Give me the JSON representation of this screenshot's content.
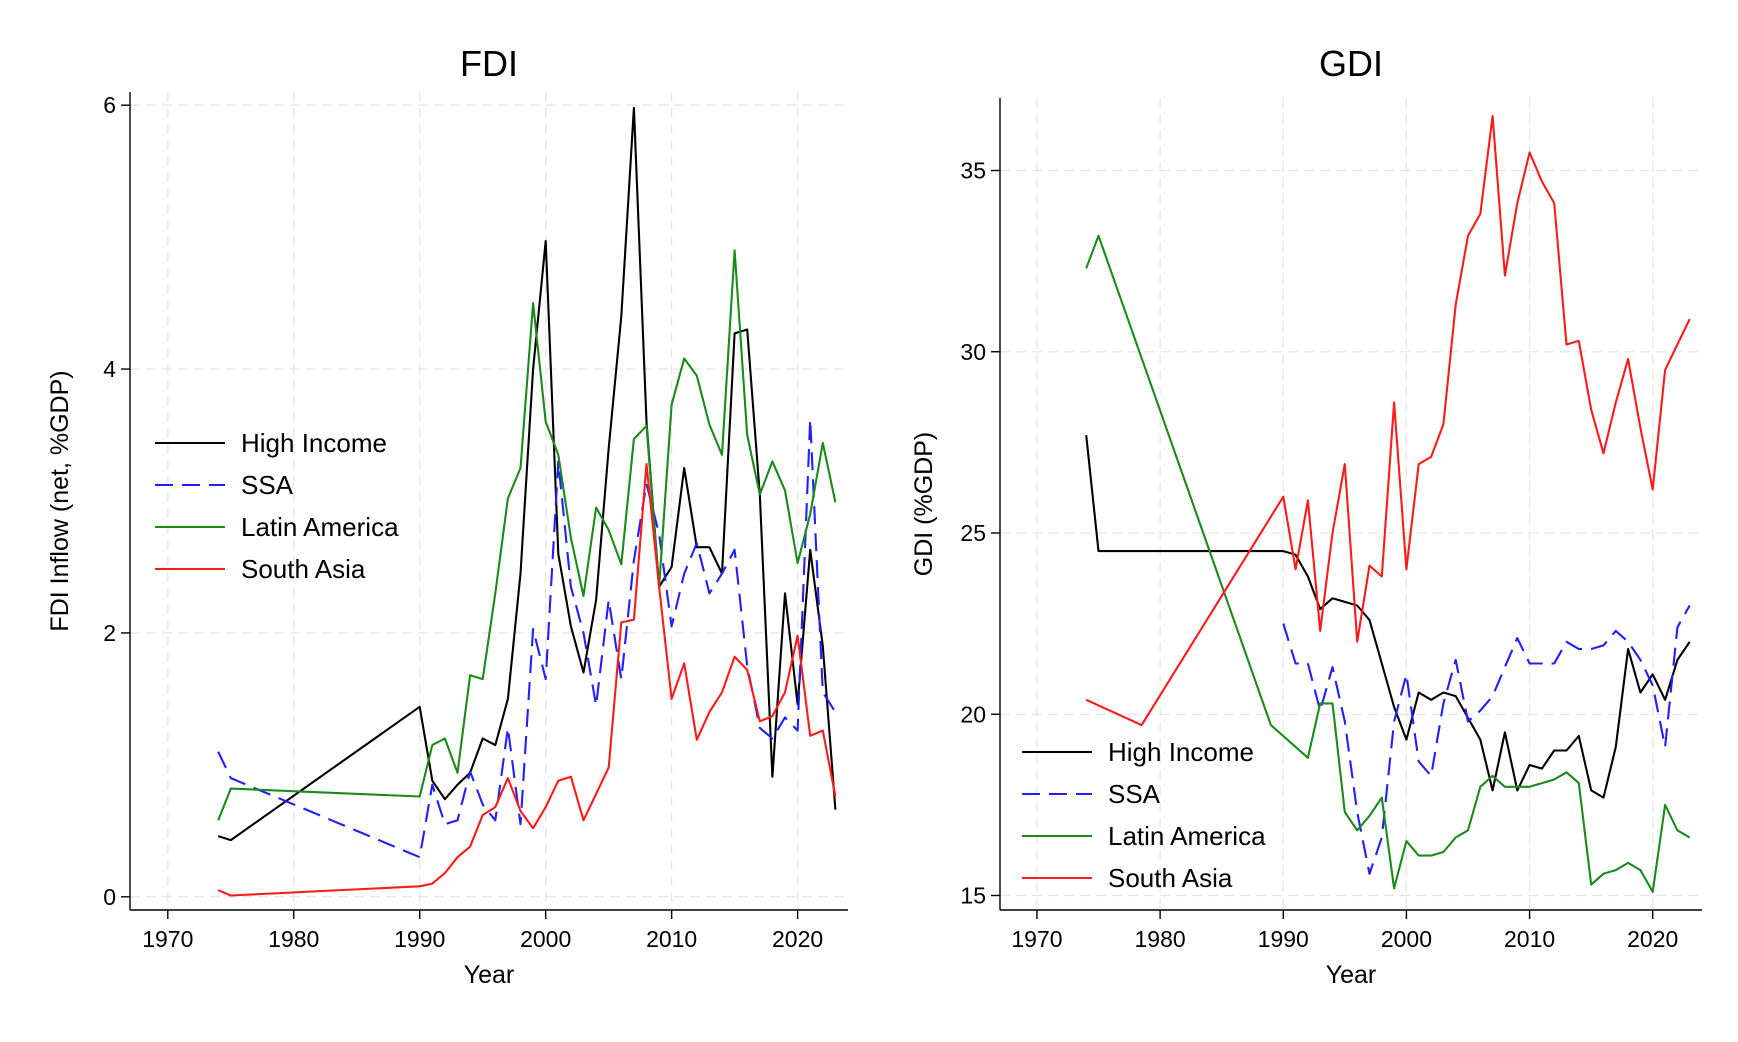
{
  "chart_data": [
    {
      "type": "line",
      "title": "FDI",
      "xlabel": "Year",
      "ylabel": "FDI Inflow (net, %GDP)",
      "xlim": [
        1967,
        2024
      ],
      "ylim": [
        -0.1,
        6.1
      ],
      "xticks": [
        1970,
        1980,
        1990,
        2000,
        2010,
        2020
      ],
      "yticks": [
        0,
        2,
        4,
        6
      ],
      "grid": true,
      "legend_position": "left-middle",
      "series": [
        {
          "name": "High Income",
          "color": "#000000",
          "dash": "solid",
          "x": [
            1974,
            1975,
            1990,
            1991,
            1992,
            1993,
            1994,
            1995,
            1996,
            1997,
            1998,
            1999,
            2000,
            2001,
            2002,
            2003,
            2004,
            2005,
            2006,
            2007,
            2008,
            2009,
            2010,
            2011,
            2012,
            2013,
            2014,
            2015,
            2016,
            2017,
            2018,
            2019,
            2020,
            2021,
            2022,
            2023
          ],
          "y": [
            0.46,
            0.43,
            1.44,
            0.88,
            0.74,
            0.85,
            0.94,
            1.2,
            1.15,
            1.5,
            2.45,
            4.0,
            4.97,
            2.6,
            2.05,
            1.7,
            2.25,
            3.4,
            4.4,
            5.98,
            3.6,
            2.35,
            2.5,
            3.25,
            2.65,
            2.65,
            2.45,
            4.27,
            4.3,
            3.05,
            0.91,
            2.3,
            1.46,
            2.63,
            1.9,
            0.66
          ]
        },
        {
          "name": "SSA",
          "color": "#1f1fff",
          "dash": "dashed",
          "x": [
            1974,
            1975,
            1990,
            1991,
            1992,
            1993,
            1994,
            1995,
            1996,
            1997,
            1998,
            1999,
            2000,
            2001,
            2002,
            2003,
            2004,
            2005,
            2006,
            2007,
            2008,
            2009,
            2010,
            2011,
            2012,
            2013,
            2014,
            2015,
            2016,
            2017,
            2018,
            2019,
            2020,
            2021,
            2022,
            2023
          ],
          "y": [
            1.1,
            0.9,
            0.3,
            0.85,
            0.55,
            0.58,
            0.95,
            0.7,
            0.58,
            1.28,
            0.55,
            2.03,
            1.65,
            3.3,
            2.35,
            2.0,
            1.45,
            2.25,
            1.65,
            2.55,
            3.13,
            2.75,
            2.05,
            2.45,
            2.68,
            2.3,
            2.45,
            2.63,
            1.75,
            1.28,
            1.2,
            1.36,
            1.26,
            3.62,
            1.55,
            1.4
          ]
        },
        {
          "name": "Latin America",
          "color": "#1a8a1a",
          "dash": "solid",
          "x": [
            1974,
            1975,
            1990,
            1991,
            1992,
            1993,
            1994,
            1995,
            1996,
            1997,
            1998,
            1999,
            2000,
            2001,
            2002,
            2003,
            2004,
            2005,
            2006,
            2007,
            2008,
            2009,
            2010,
            2011,
            2012,
            2013,
            2014,
            2015,
            2016,
            2017,
            2018,
            2019,
            2020,
            2021,
            2022,
            2023
          ],
          "y": [
            0.58,
            0.82,
            0.76,
            1.15,
            1.2,
            0.94,
            1.68,
            1.65,
            2.3,
            3.02,
            3.25,
            4.5,
            3.6,
            3.35,
            2.72,
            2.28,
            2.95,
            2.78,
            2.52,
            3.47,
            3.57,
            2.35,
            3.73,
            4.08,
            3.95,
            3.58,
            3.35,
            4.9,
            3.5,
            3.05,
            3.3,
            3.08,
            2.53,
            2.9,
            3.44,
            2.99
          ]
        },
        {
          "name": "South Asia",
          "color": "#ff1a1a",
          "dash": "solid",
          "x": [
            1974,
            1975,
            1990,
            1991,
            1992,
            1993,
            1994,
            1995,
            1996,
            1997,
            1998,
            1999,
            2000,
            2001,
            2002,
            2003,
            2004,
            2005,
            2006,
            2007,
            2008,
            2009,
            2010,
            2011,
            2012,
            2013,
            2014,
            2015,
            2016,
            2017,
            2018,
            2019,
            2020,
            2021,
            2022,
            2023
          ],
          "y": [
            0.05,
            0.01,
            0.08,
            0.1,
            0.18,
            0.3,
            0.38,
            0.62,
            0.68,
            0.9,
            0.65,
            0.52,
            0.68,
            0.88,
            0.91,
            0.58,
            0.78,
            0.98,
            2.08,
            2.1,
            3.28,
            2.35,
            1.5,
            1.77,
            1.19,
            1.4,
            1.55,
            1.82,
            1.72,
            1.33,
            1.37,
            1.55,
            1.98,
            1.22,
            1.26,
            0.76
          ]
        }
      ]
    },
    {
      "type": "line",
      "title": "GDI",
      "xlabel": "Year",
      "ylabel": "GDI (%GDP)",
      "xlim": [
        1967,
        2024
      ],
      "ylim": [
        14.6,
        37
      ],
      "xticks": [
        1970,
        1980,
        1990,
        2000,
        2010,
        2020
      ],
      "yticks": [
        15,
        20,
        25,
        30,
        35
      ],
      "grid": true,
      "legend_position": "bottom-left",
      "series": [
        {
          "name": "High Income",
          "color": "#000000",
          "dash": "solid",
          "x": [
            1974,
            1975,
            1990,
            1991,
            1992,
            1993,
            1994,
            1995,
            1996,
            1997,
            1998,
            1999,
            2000,
            2001,
            2002,
            2003,
            2004,
            2005,
            2006,
            2007,
            2008,
            2009,
            2010,
            2011,
            2012,
            2013,
            2014,
            2015,
            2016,
            2017,
            2018,
            2019,
            2020,
            2021,
            2022,
            2023
          ],
          "y": [
            27.7,
            24.5,
            24.5,
            24.4,
            23.8,
            22.9,
            23.2,
            23.1,
            23.0,
            22.6,
            21.4,
            20.2,
            19.3,
            20.6,
            20.4,
            20.6,
            20.5,
            19.9,
            19.3,
            17.9,
            19.5,
            17.9,
            18.6,
            18.5,
            19.0,
            19.0,
            19.4,
            17.9,
            17.7,
            19.1,
            21.8,
            20.6,
            21.1,
            20.4,
            21.5,
            22.0
          ]
        },
        {
          "name": "SSA",
          "color": "#1f1fff",
          "dash": "dashed",
          "x": [
            1990,
            1991,
            1992,
            1993,
            1994,
            1995,
            1996,
            1997,
            1998,
            1999,
            2000,
            2001,
            2002,
            2003,
            2004,
            2005,
            2006,
            2007,
            2008,
            2009,
            2010,
            2011,
            2012,
            2013,
            2014,
            2015,
            2016,
            2017,
            2018,
            2019,
            2020,
            2021,
            2022,
            2023
          ],
          "y": [
            22.5,
            21.4,
            21.4,
            20.1,
            21.3,
            19.8,
            17.3,
            15.6,
            16.6,
            19.8,
            21.1,
            18.7,
            18.3,
            20.3,
            21.5,
            19.8,
            20.1,
            20.5,
            21.3,
            22.1,
            21.4,
            21.4,
            21.4,
            22.0,
            21.8,
            21.8,
            21.9,
            22.3,
            22.0,
            21.5,
            20.8,
            19.1,
            22.4,
            23.0
          ]
        },
        {
          "name": "Latin America",
          "color": "#1a8a1a",
          "dash": "solid",
          "x": [
            1974,
            1975,
            1989,
            1992,
            1993,
            1994,
            1995,
            1996,
            1997,
            1998,
            1999,
            2000,
            2001,
            2002,
            2003,
            2004,
            2005,
            2006,
            2007,
            2008,
            2009,
            2010,
            2011,
            2012,
            2013,
            2014,
            2015,
            2016,
            2017,
            2018,
            2019,
            2020,
            2021,
            2022,
            2023
          ],
          "y": [
            32.3,
            33.2,
            19.7,
            18.8,
            20.3,
            20.3,
            17.3,
            16.8,
            17.2,
            17.7,
            15.2,
            16.5,
            16.1,
            16.1,
            16.2,
            16.6,
            16.8,
            18.0,
            18.3,
            18.0,
            18.0,
            18.0,
            18.1,
            18.2,
            18.4,
            18.1,
            15.3,
            15.6,
            15.7,
            15.9,
            15.7,
            15.1,
            17.5,
            16.8,
            16.6
          ]
        },
        {
          "name": "South Asia",
          "color": "#ff1a1a",
          "dash": "solid",
          "x": [
            1974,
            1978.5,
            1990,
            1991,
            1992,
            1993,
            1994,
            1995,
            1996,
            1997,
            1998,
            1999,
            2000,
            2001,
            2002,
            2003,
            2004,
            2005,
            2006,
            2007,
            2008,
            2009,
            2010,
            2011,
            2012,
            2013,
            2014,
            2015,
            2016,
            2017,
            2018,
            2019,
            2020,
            2021,
            2022,
            2023
          ],
          "y": [
            20.4,
            19.7,
            26.0,
            24.0,
            25.9,
            22.3,
            25.0,
            26.9,
            22.0,
            24.1,
            23.8,
            28.6,
            24.0,
            26.9,
            27.1,
            28.0,
            31.3,
            33.2,
            33.8,
            36.5,
            32.1,
            34.1,
            35.5,
            34.7,
            34.1,
            30.2,
            30.3,
            28.4,
            27.2,
            28.6,
            29.8,
            27.9,
            26.2,
            29.5,
            30.2,
            30.9
          ]
        }
      ]
    }
  ]
}
